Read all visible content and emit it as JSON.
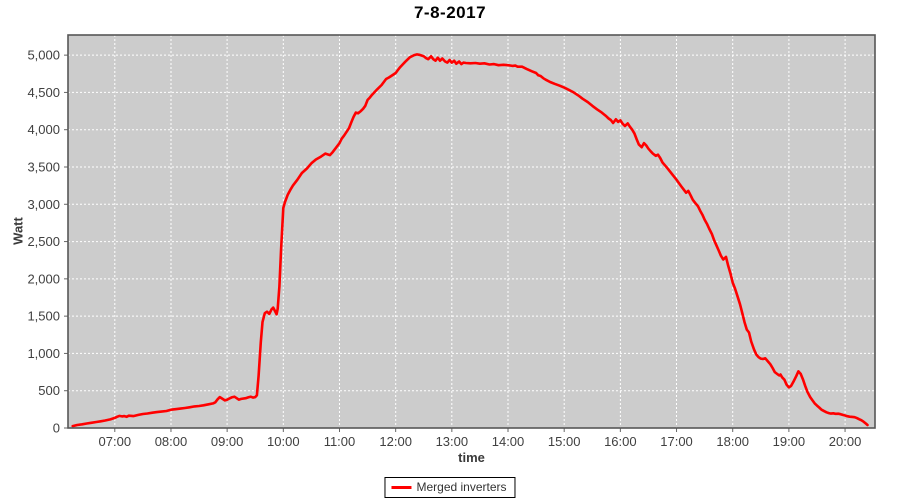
{
  "chart_data": {
    "type": "line",
    "title": "7-8-2017",
    "xlabel": "time",
    "ylabel": "Watt",
    "legend_label": "Merged inverters",
    "legend_position": "bottom-center",
    "grid": "white dashed on gray plot background",
    "colors": {
      "series": "#ff0000",
      "plot_background": "#cccccc",
      "gridline": "#ffffff",
      "plot_border": "#565656",
      "tick_label": "#404040",
      "tick_mark": "#666666",
      "title": "#000000",
      "axis_title": "#3a3a3a",
      "page_background": "#ffffff"
    },
    "xlim_hours": [
      6.167,
      20.533
    ],
    "ylim": [
      0,
      5270
    ],
    "x_ticks": [
      {
        "hour": 7,
        "label": "07:00"
      },
      {
        "hour": 8,
        "label": "08:00"
      },
      {
        "hour": 9,
        "label": "09:00"
      },
      {
        "hour": 10,
        "label": "10:00"
      },
      {
        "hour": 11,
        "label": "11:00"
      },
      {
        "hour": 12,
        "label": "12:00"
      },
      {
        "hour": 13,
        "label": "13:00"
      },
      {
        "hour": 14,
        "label": "14:00"
      },
      {
        "hour": 15,
        "label": "15:00"
      },
      {
        "hour": 16,
        "label": "16:00"
      },
      {
        "hour": 17,
        "label": "17:00"
      },
      {
        "hour": 18,
        "label": "18:00"
      },
      {
        "hour": 19,
        "label": "19:00"
      },
      {
        "hour": 20,
        "label": "20:00"
      }
    ],
    "y_ticks": [
      {
        "value": 0,
        "label": "0"
      },
      {
        "value": 500,
        "label": "500"
      },
      {
        "value": 1000,
        "label": "1,000"
      },
      {
        "value": 1500,
        "label": "1,500"
      },
      {
        "value": 2000,
        "label": "2,000"
      },
      {
        "value": 2500,
        "label": "2,500"
      },
      {
        "value": 3000,
        "label": "3,000"
      },
      {
        "value": 3500,
        "label": "3,500"
      },
      {
        "value": 4000,
        "label": "4,000"
      },
      {
        "value": 4500,
        "label": "4,500"
      },
      {
        "value": 5000,
        "label": "5,000"
      }
    ],
    "series": [
      {
        "name": "Merged inverters",
        "color": "#ff0000",
        "points": [
          [
            6.25,
            25
          ],
          [
            6.33,
            40
          ],
          [
            6.42,
            50
          ],
          [
            6.5,
            60
          ],
          [
            6.58,
            70
          ],
          [
            6.67,
            80
          ],
          [
            6.75,
            90
          ],
          [
            6.83,
            100
          ],
          [
            6.92,
            115
          ],
          [
            7.0,
            135
          ],
          [
            7.04,
            150
          ],
          [
            7.08,
            162
          ],
          [
            7.13,
            155
          ],
          [
            7.17,
            160
          ],
          [
            7.21,
            150
          ],
          [
            7.25,
            165
          ],
          [
            7.33,
            160
          ],
          [
            7.42,
            175
          ],
          [
            7.5,
            188
          ],
          [
            7.58,
            195
          ],
          [
            7.67,
            205
          ],
          [
            7.75,
            213
          ],
          [
            7.83,
            220
          ],
          [
            7.92,
            228
          ],
          [
            8.0,
            245
          ],
          [
            8.08,
            252
          ],
          [
            8.17,
            260
          ],
          [
            8.25,
            268
          ],
          [
            8.33,
            278
          ],
          [
            8.42,
            290
          ],
          [
            8.5,
            295
          ],
          [
            8.58,
            305
          ],
          [
            8.67,
            318
          ],
          [
            8.75,
            330
          ],
          [
            8.79,
            345
          ],
          [
            8.83,
            385
          ],
          [
            8.87,
            415
          ],
          [
            8.92,
            390
          ],
          [
            8.96,
            370
          ],
          [
            9.0,
            380
          ],
          [
            9.04,
            395
          ],
          [
            9.08,
            410
          ],
          [
            9.13,
            420
          ],
          [
            9.17,
            400
          ],
          [
            9.21,
            380
          ],
          [
            9.25,
            390
          ],
          [
            9.33,
            400
          ],
          [
            9.38,
            412
          ],
          [
            9.42,
            420
          ],
          [
            9.46,
            408
          ],
          [
            9.5,
            415
          ],
          [
            9.53,
            440
          ],
          [
            9.56,
            700
          ],
          [
            9.6,
            1150
          ],
          [
            9.63,
            1420
          ],
          [
            9.67,
            1540
          ],
          [
            9.71,
            1560
          ],
          [
            9.75,
            1530
          ],
          [
            9.79,
            1590
          ],
          [
            9.82,
            1615
          ],
          [
            9.85,
            1570
          ],
          [
            9.88,
            1525
          ],
          [
            9.9,
            1600
          ],
          [
            9.93,
            1900
          ],
          [
            9.96,
            2400
          ],
          [
            10.0,
            2950
          ],
          [
            10.03,
            3030
          ],
          [
            10.08,
            3130
          ],
          [
            10.13,
            3200
          ],
          [
            10.17,
            3250
          ],
          [
            10.25,
            3330
          ],
          [
            10.33,
            3420
          ],
          [
            10.42,
            3480
          ],
          [
            10.5,
            3550
          ],
          [
            10.58,
            3600
          ],
          [
            10.67,
            3640
          ],
          [
            10.75,
            3680
          ],
          [
            10.83,
            3660
          ],
          [
            10.88,
            3700
          ],
          [
            10.92,
            3740
          ],
          [
            11.0,
            3820
          ],
          [
            11.04,
            3880
          ],
          [
            11.08,
            3920
          ],
          [
            11.17,
            4020
          ],
          [
            11.21,
            4100
          ],
          [
            11.25,
            4170
          ],
          [
            11.29,
            4230
          ],
          [
            11.33,
            4220
          ],
          [
            11.38,
            4250
          ],
          [
            11.42,
            4280
          ],
          [
            11.46,
            4320
          ],
          [
            11.5,
            4400
          ],
          [
            11.54,
            4430
          ],
          [
            11.58,
            4470
          ],
          [
            11.63,
            4510
          ],
          [
            11.67,
            4540
          ],
          [
            11.75,
            4600
          ],
          [
            11.83,
            4680
          ],
          [
            11.88,
            4700
          ],
          [
            11.92,
            4720
          ],
          [
            12.0,
            4760
          ],
          [
            12.04,
            4800
          ],
          [
            12.08,
            4840
          ],
          [
            12.13,
            4880
          ],
          [
            12.17,
            4910
          ],
          [
            12.21,
            4940
          ],
          [
            12.25,
            4970
          ],
          [
            12.33,
            5000
          ],
          [
            12.38,
            5010
          ],
          [
            12.42,
            5005
          ],
          [
            12.46,
            4995
          ],
          [
            12.5,
            4985
          ],
          [
            12.54,
            4960
          ],
          [
            12.58,
            4945
          ],
          [
            12.63,
            4985
          ],
          [
            12.67,
            4945
          ],
          [
            12.71,
            4925
          ],
          [
            12.75,
            4965
          ],
          [
            12.79,
            4925
          ],
          [
            12.83,
            4955
          ],
          [
            12.88,
            4915
          ],
          [
            12.92,
            4900
          ],
          [
            12.96,
            4935
          ],
          [
            13.0,
            4900
          ],
          [
            13.04,
            4925
          ],
          [
            13.08,
            4885
          ],
          [
            13.13,
            4915
          ],
          [
            13.17,
            4880
          ],
          [
            13.21,
            4900
          ],
          [
            13.25,
            4895
          ],
          [
            13.33,
            4890
          ],
          [
            13.42,
            4895
          ],
          [
            13.5,
            4885
          ],
          [
            13.58,
            4890
          ],
          [
            13.67,
            4875
          ],
          [
            13.75,
            4880
          ],
          [
            13.83,
            4865
          ],
          [
            13.92,
            4870
          ],
          [
            14.0,
            4865
          ],
          [
            14.08,
            4855
          ],
          [
            14.13,
            4860
          ],
          [
            14.17,
            4845
          ],
          [
            14.25,
            4845
          ],
          [
            14.33,
            4815
          ],
          [
            14.42,
            4785
          ],
          [
            14.5,
            4760
          ],
          [
            14.54,
            4730
          ],
          [
            14.58,
            4720
          ],
          [
            14.63,
            4690
          ],
          [
            14.67,
            4670
          ],
          [
            14.75,
            4640
          ],
          [
            14.83,
            4615
          ],
          [
            14.92,
            4590
          ],
          [
            15.0,
            4565
          ],
          [
            15.08,
            4535
          ],
          [
            15.17,
            4500
          ],
          [
            15.25,
            4460
          ],
          [
            15.33,
            4415
          ],
          [
            15.42,
            4370
          ],
          [
            15.5,
            4320
          ],
          [
            15.58,
            4275
          ],
          [
            15.67,
            4230
          ],
          [
            15.75,
            4180
          ],
          [
            15.79,
            4150
          ],
          [
            15.83,
            4130
          ],
          [
            15.87,
            4090
          ],
          [
            15.92,
            4140
          ],
          [
            15.96,
            4105
          ],
          [
            16.0,
            4125
          ],
          [
            16.04,
            4080
          ],
          [
            16.08,
            4050
          ],
          [
            16.13,
            4085
          ],
          [
            16.17,
            4040
          ],
          [
            16.21,
            4000
          ],
          [
            16.25,
            3950
          ],
          [
            16.29,
            3870
          ],
          [
            16.33,
            3800
          ],
          [
            16.38,
            3765
          ],
          [
            16.42,
            3820
          ],
          [
            16.46,
            3790
          ],
          [
            16.5,
            3745
          ],
          [
            16.54,
            3710
          ],
          [
            16.58,
            3680
          ],
          [
            16.63,
            3650
          ],
          [
            16.67,
            3665
          ],
          [
            16.71,
            3620
          ],
          [
            16.75,
            3560
          ],
          [
            16.83,
            3490
          ],
          [
            16.92,
            3405
          ],
          [
            17.0,
            3330
          ],
          [
            17.08,
            3245
          ],
          [
            17.13,
            3195
          ],
          [
            17.17,
            3155
          ],
          [
            17.21,
            3180
          ],
          [
            17.25,
            3120
          ],
          [
            17.29,
            3060
          ],
          [
            17.33,
            3020
          ],
          [
            17.38,
            2975
          ],
          [
            17.42,
            2915
          ],
          [
            17.46,
            2860
          ],
          [
            17.5,
            2795
          ],
          [
            17.54,
            2740
          ],
          [
            17.58,
            2675
          ],
          [
            17.63,
            2600
          ],
          [
            17.67,
            2515
          ],
          [
            17.71,
            2450
          ],
          [
            17.75,
            2380
          ],
          [
            17.79,
            2310
          ],
          [
            17.83,
            2260
          ],
          [
            17.88,
            2295
          ],
          [
            17.92,
            2175
          ],
          [
            17.96,
            2070
          ],
          [
            18.0,
            1950
          ],
          [
            18.04,
            1870
          ],
          [
            18.08,
            1780
          ],
          [
            18.13,
            1660
          ],
          [
            18.17,
            1540
          ],
          [
            18.21,
            1420
          ],
          [
            18.25,
            1320
          ],
          [
            18.29,
            1280
          ],
          [
            18.33,
            1160
          ],
          [
            18.38,
            1050
          ],
          [
            18.42,
            985
          ],
          [
            18.46,
            950
          ],
          [
            18.5,
            930
          ],
          [
            18.54,
            925
          ],
          [
            18.58,
            935
          ],
          [
            18.63,
            890
          ],
          [
            18.67,
            855
          ],
          [
            18.71,
            805
          ],
          [
            18.75,
            750
          ],
          [
            18.79,
            725
          ],
          [
            18.83,
            705
          ],
          [
            18.85,
            718
          ],
          [
            18.88,
            680
          ],
          [
            18.92,
            648
          ],
          [
            18.96,
            580
          ],
          [
            19.0,
            545
          ],
          [
            19.04,
            565
          ],
          [
            19.08,
            620
          ],
          [
            19.13,
            695
          ],
          [
            19.17,
            760
          ],
          [
            19.21,
            725
          ],
          [
            19.25,
            655
          ],
          [
            19.29,
            565
          ],
          [
            19.33,
            485
          ],
          [
            19.38,
            415
          ],
          [
            19.42,
            370
          ],
          [
            19.46,
            330
          ],
          [
            19.5,
            300
          ],
          [
            19.54,
            275
          ],
          [
            19.58,
            245
          ],
          [
            19.63,
            225
          ],
          [
            19.67,
            210
          ],
          [
            19.71,
            200
          ],
          [
            19.75,
            193
          ],
          [
            19.79,
            197
          ],
          [
            19.83,
            190
          ],
          [
            19.88,
            192
          ],
          [
            19.92,
            185
          ],
          [
            19.96,
            176
          ],
          [
            20.0,
            168
          ],
          [
            20.04,
            158
          ],
          [
            20.08,
            152
          ],
          [
            20.13,
            149
          ],
          [
            20.17,
            145
          ],
          [
            20.21,
            133
          ],
          [
            20.25,
            118
          ],
          [
            20.29,
            105
          ],
          [
            20.33,
            85
          ],
          [
            20.37,
            60
          ],
          [
            20.4,
            40
          ]
        ]
      }
    ]
  }
}
